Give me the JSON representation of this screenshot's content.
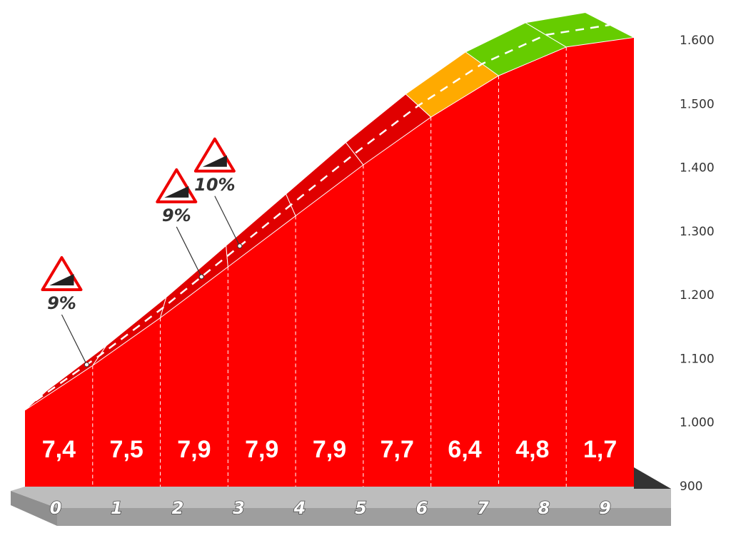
{
  "chart_data": {
    "type": "climb-profile",
    "x": [
      0,
      1,
      2,
      3,
      4,
      5,
      6,
      7,
      8,
      9
    ],
    "elevation": [
      1020,
      1090,
      1165,
      1245,
      1325,
      1405,
      1480,
      1545,
      1590,
      1605
    ],
    "gradients": [
      7.4,
      7.5,
      7.9,
      7.9,
      7.9,
      7.7,
      6.4,
      4.8,
      1.7
    ],
    "value_labels": [
      "7,4",
      "7,5",
      "7,9",
      "7,9",
      "7,9",
      "7,7",
      "6,4",
      "4,8",
      "1,7"
    ],
    "segment_colors": [
      "#e00000",
      "#e00000",
      "#e00000",
      "#e00000",
      "#e00000",
      "#e00000",
      "#ffaa00",
      "#66cc00",
      "#66cc00"
    ],
    "face_color": "#ff0000",
    "ylim": [
      900,
      1600
    ],
    "yticks": [
      900,
      {
        "value": 1000,
        "label": "1.000"
      },
      {
        "value": 1100,
        "label": "1.100"
      },
      {
        "value": 1200,
        "label": "1.200"
      },
      {
        "value": 1300,
        "label": "1.300"
      },
      {
        "value": 1400,
        "label": "1.400"
      },
      {
        "value": 1500,
        "label": "1.500"
      },
      {
        "value": 1600,
        "label": "1.600"
      }
    ],
    "annotations": [
      {
        "text": "9%",
        "x": 0.8
      },
      {
        "text": "9%",
        "x": 2.6
      },
      {
        "text": "10%",
        "x": 3.2
      }
    ]
  }
}
